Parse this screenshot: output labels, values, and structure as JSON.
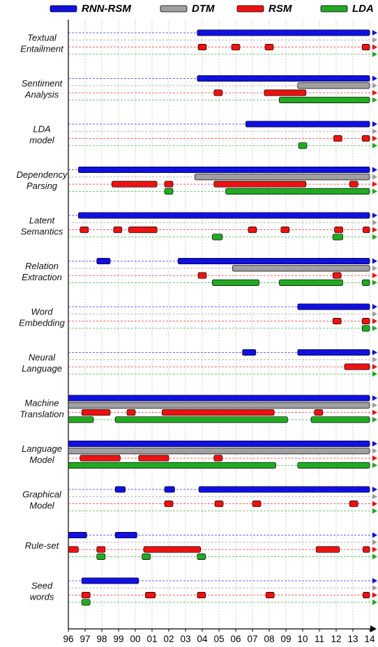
{
  "chart_data": {
    "type": "timeline",
    "legend": [
      {
        "name": "RNN-RSM",
        "color": "#1010e0"
      },
      {
        "name": "DTM",
        "color": "#a0a0a0"
      },
      {
        "name": "RSM",
        "color": "#ee1111"
      },
      {
        "name": "LDA",
        "color": "#22aa22"
      }
    ],
    "legend_placement": "top",
    "x_ticks": [
      "96",
      "97",
      "98",
      "99",
      "00",
      "01",
      "02",
      "03",
      "04",
      "05",
      "06",
      "07",
      "08",
      "09",
      "10",
      "11",
      "12",
      "13",
      "14"
    ],
    "xlim": [
      1996,
      2014
    ],
    "grid": true,
    "groups": [
      {
        "label": [
          "Textual",
          "Entailment"
        ],
        "bars": {
          "RNN-RSM": [
            [
              2003.7,
              2014.0
            ]
          ],
          "DTM": [],
          "RSM": [
            [
              2003.75,
              2004.25
            ],
            [
              2005.75,
              2006.25
            ],
            [
              2007.75,
              2008.25
            ],
            [
              2013.55,
              2014.0
            ]
          ],
          "LDA": []
        }
      },
      {
        "label": [
          "Sentiment",
          "Analysis"
        ],
        "bars": {
          "RNN-RSM": [
            [
              2003.7,
              2014.0
            ]
          ],
          "DTM": [
            [
              2009.7,
              2014.0
            ]
          ],
          "RSM": [
            [
              2004.7,
              2005.2
            ],
            [
              2007.7,
              2010.2
            ]
          ],
          "LDA": [
            [
              2008.6,
              2014.0
            ]
          ]
        }
      },
      {
        "label": [
          "LDA",
          "model"
        ],
        "bars": {
          "RNN-RSM": [
            [
              2006.6,
              2014.0
            ]
          ],
          "DTM": [],
          "RSM": [
            [
              2011.85,
              2012.35
            ],
            [
              2013.55,
              2014.0
            ]
          ],
          "LDA": [
            [
              2009.75,
              2010.25
            ]
          ]
        }
      },
      {
        "label": [
          "Dependency",
          "Parsing"
        ],
        "bars": {
          "RNN-RSM": [
            [
              1996.6,
              2014.0
            ]
          ],
          "DTM": [
            [
              2003.55,
              2014.0
            ]
          ],
          "RSM": [
            [
              1998.6,
              2001.3
            ],
            [
              2001.75,
              2002.25
            ],
            [
              2004.7,
              2010.2
            ],
            [
              2012.8,
              2013.3
            ]
          ],
          "LDA": [
            [
              2001.75,
              2002.25
            ],
            [
              2005.4,
              2014.0
            ]
          ]
        }
      },
      {
        "label": [
          "Latent",
          "Semantics"
        ],
        "bars": {
          "RNN-RSM": [
            [
              1996.6,
              2014.0
            ]
          ],
          "DTM": [],
          "RSM": [
            [
              1996.7,
              1997.2
            ],
            [
              1998.7,
              1999.2
            ],
            [
              1999.6,
              2001.3
            ],
            [
              2006.75,
              2007.25
            ],
            [
              2008.7,
              2009.2
            ],
            [
              2011.9,
              2012.4
            ],
            [
              2013.6,
              2014.0
            ]
          ],
          "LDA": [
            [
              2004.6,
              2005.2
            ],
            [
              2011.8,
              2012.4
            ]
          ]
        }
      },
      {
        "label": [
          "Relation",
          "Extraction"
        ],
        "bars": {
          "RNN-RSM": [
            [
              1997.7,
              1998.5
            ],
            [
              2002.55,
              2014.0
            ]
          ],
          "DTM": [
            [
              2005.8,
              2014.0
            ]
          ],
          "RSM": [
            [
              2003.75,
              2004.25
            ],
            [
              2011.8,
              2012.3
            ]
          ],
          "LDA": [
            [
              2004.6,
              2007.4
            ],
            [
              2008.6,
              2012.4
            ],
            [
              2013.55,
              2014.0
            ]
          ]
        }
      },
      {
        "label": [
          "Word",
          "Embedding"
        ],
        "bars": {
          "RNN-RSM": [
            [
              2009.7,
              2014.0
            ]
          ],
          "DTM": [],
          "RSM": [
            [
              2011.8,
              2012.3
            ],
            [
              2013.55,
              2014.0
            ]
          ],
          "LDA": [
            [
              2013.55,
              2014.0
            ]
          ]
        }
      },
      {
        "label": [
          "Neural",
          "Language"
        ],
        "bars": {
          "RNN-RSM": [
            [
              2006.4,
              2007.2
            ],
            [
              2009.7,
              2014.0
            ]
          ],
          "DTM": [],
          "RSM": [
            [
              2012.5,
              2014.0
            ]
          ],
          "LDA": []
        }
      },
      {
        "label": [
          "Machine",
          "Translation"
        ],
        "bars": {
          "RNN-RSM": [
            [
              1996.0,
              2014.0
            ]
          ],
          "DTM": [
            [
              1996.0,
              2014.0
            ]
          ],
          "RSM": [
            [
              1996.8,
              1998.5
            ],
            [
              1999.5,
              2000.0
            ],
            [
              2001.6,
              2008.3
            ],
            [
              2010.7,
              2011.2
            ]
          ],
          "LDA": [
            [
              1996.0,
              1997.5
            ],
            [
              1998.8,
              2009.1
            ],
            [
              2010.5,
              2014.0
            ]
          ]
        }
      },
      {
        "label": [
          "Language",
          "Model"
        ],
        "bars": {
          "RNN-RSM": [
            [
              1996.0,
              2014.0
            ]
          ],
          "DTM": [
            [
              1996.0,
              2014.0
            ]
          ],
          "RSM": [
            [
              1996.7,
              1999.1
            ],
            [
              2000.2,
              2002.0
            ],
            [
              2004.7,
              2005.2
            ]
          ],
          "LDA": [
            [
              1996.0,
              2008.4
            ],
            [
              2009.7,
              2014.0
            ]
          ]
        }
      },
      {
        "label": [
          "Graphical",
          "Model"
        ],
        "bars": {
          "RNN-RSM": [
            [
              1998.8,
              1999.4
            ],
            [
              2001.75,
              2002.35
            ],
            [
              2003.8,
              2014.0
            ]
          ],
          "DTM": [],
          "RSM": [
            [
              2001.75,
              2002.25
            ],
            [
              2004.75,
              2005.25
            ],
            [
              2007.0,
              2007.5
            ],
            [
              2012.8,
              2013.3
            ]
          ],
          "LDA": []
        }
      },
      {
        "label": [
          "Rule-set"
        ],
        "bars": {
          "RNN-RSM": [
            [
              1996.0,
              1997.1
            ],
            [
              1998.8,
              2000.1
            ]
          ],
          "DTM": [],
          "RSM": [
            [
              1996.0,
              1996.6
            ],
            [
              1997.7,
              1998.2
            ],
            [
              2000.5,
              2003.9
            ],
            [
              2010.8,
              2012.2
            ],
            [
              2013.6,
              2014.0
            ]
          ],
          "LDA": [
            [
              1997.7,
              1998.2
            ],
            [
              2000.4,
              2000.9
            ],
            [
              2003.7,
              2004.2
            ]
          ]
        }
      },
      {
        "label": [
          "Seed",
          "words"
        ],
        "bars": {
          "RNN-RSM": [
            [
              1996.8,
              2000.2
            ]
          ],
          "DTM": [],
          "RSM": [
            [
              1996.8,
              1997.3
            ],
            [
              2000.6,
              2001.2
            ],
            [
              2003.7,
              2004.2
            ],
            [
              2007.8,
              2008.3
            ],
            [
              2013.6,
              2014.0
            ]
          ],
          "LDA": [
            [
              1996.8,
              1997.3
            ]
          ]
        }
      }
    ]
  }
}
